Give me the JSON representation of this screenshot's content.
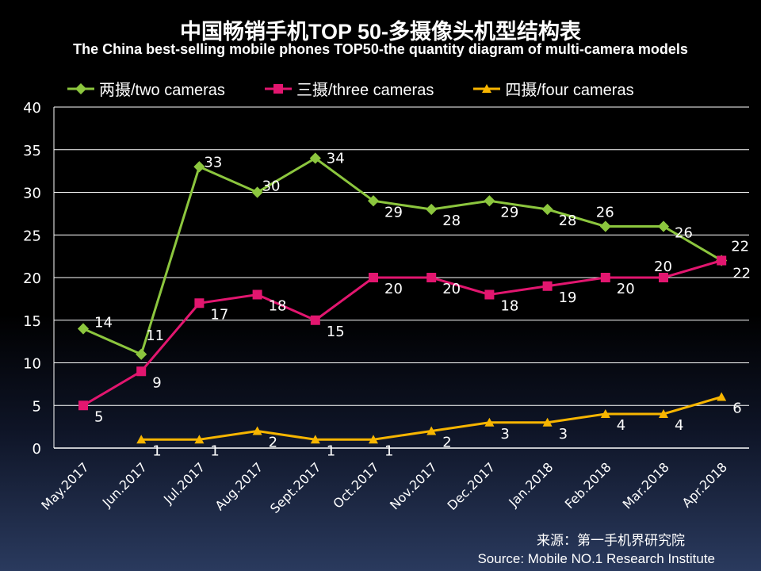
{
  "chart_data": {
    "type": "line",
    "title": "中国畅销手机TOP 50-多摄像头机型结构表",
    "subtitle": "The China best-selling mobile phones TOP50-the quantity diagram of multi-camera models",
    "categories": [
      "May.2017",
      "Jun.2017",
      "Jul.2017",
      "Aug.2017",
      "Sept.2017",
      "Oct.2017",
      "Nov.2017",
      "Dec.2017",
      "Jan.2018",
      "Feb.2018",
      "Mar.2018",
      "Apr.2018"
    ],
    "ylim": [
      0,
      40
    ],
    "yticks": [
      0,
      5,
      10,
      15,
      20,
      25,
      30,
      35,
      40
    ],
    "grid": true,
    "legend_position": "top",
    "series": [
      {
        "name": "两摄/two cameras",
        "color": "#8cc63e",
        "marker": "diamond",
        "values": [
          14,
          11,
          33,
          30,
          34,
          29,
          28,
          29,
          28,
          26,
          26,
          22
        ]
      },
      {
        "name": "三摄/three cameras",
        "color": "#e2166f",
        "marker": "square",
        "values": [
          5,
          9,
          17,
          18,
          15,
          20,
          20,
          18,
          19,
          20,
          20,
          22
        ]
      },
      {
        "name": "四摄/four cameras",
        "color": "#f7b500",
        "marker": "triangle",
        "values": [
          null,
          1,
          1,
          2,
          1,
          1,
          2,
          3,
          3,
          4,
          4,
          6
        ]
      }
    ]
  },
  "source": {
    "cn": "来源：第一手机界研究院",
    "en": "Source: Mobile NO.1 Research Institute"
  }
}
